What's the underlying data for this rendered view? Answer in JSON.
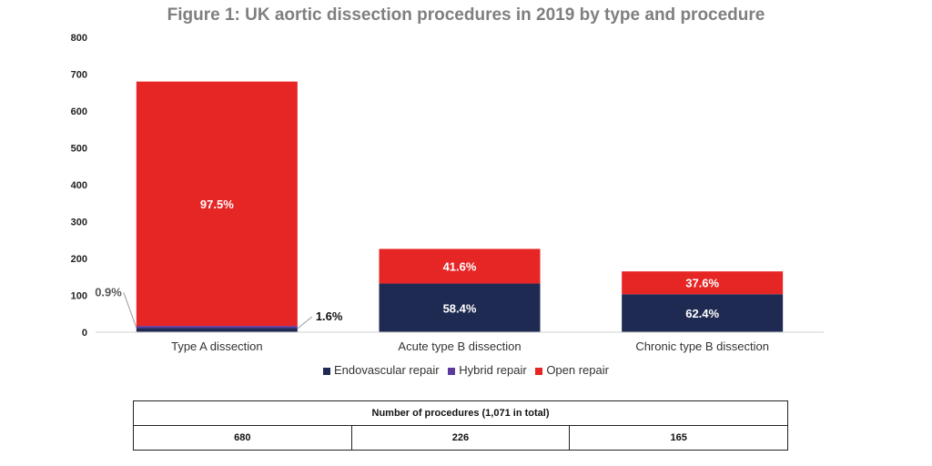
{
  "chart_data": {
    "type": "bar",
    "stacked": true,
    "title": "Figure 1: UK aortic dissection procedures in 2019 by type and procedure",
    "categories": [
      "Type A dissection",
      "Acute type B dissection",
      "Chronic type B dissection"
    ],
    "series": [
      {
        "name": "Endovascular repair",
        "color": "#1f2a52",
        "values": [
          11,
          132,
          103
        ],
        "labels": [
          "1.6%",
          "58.4%",
          "62.4%"
        ]
      },
      {
        "name": "Hybrid repair",
        "color": "#5b3a9c",
        "values": [
          6,
          0,
          0
        ],
        "labels": [
          "0.9%",
          "",
          ""
        ]
      },
      {
        "name": "Open repair",
        "color": "#e62525",
        "values": [
          663,
          94,
          62
        ],
        "labels": [
          "97.5%",
          "41.6%",
          "37.6%"
        ]
      }
    ],
    "ylim": [
      0,
      800
    ],
    "yticks": [
      "0",
      "100",
      "200",
      "300",
      "400",
      "500",
      "600",
      "700",
      "800"
    ],
    "legend_position": "bottom",
    "grid": false
  },
  "table": {
    "header": "Number of procedures (1,071 in total)",
    "values": [
      "680",
      "226",
      "165"
    ]
  }
}
